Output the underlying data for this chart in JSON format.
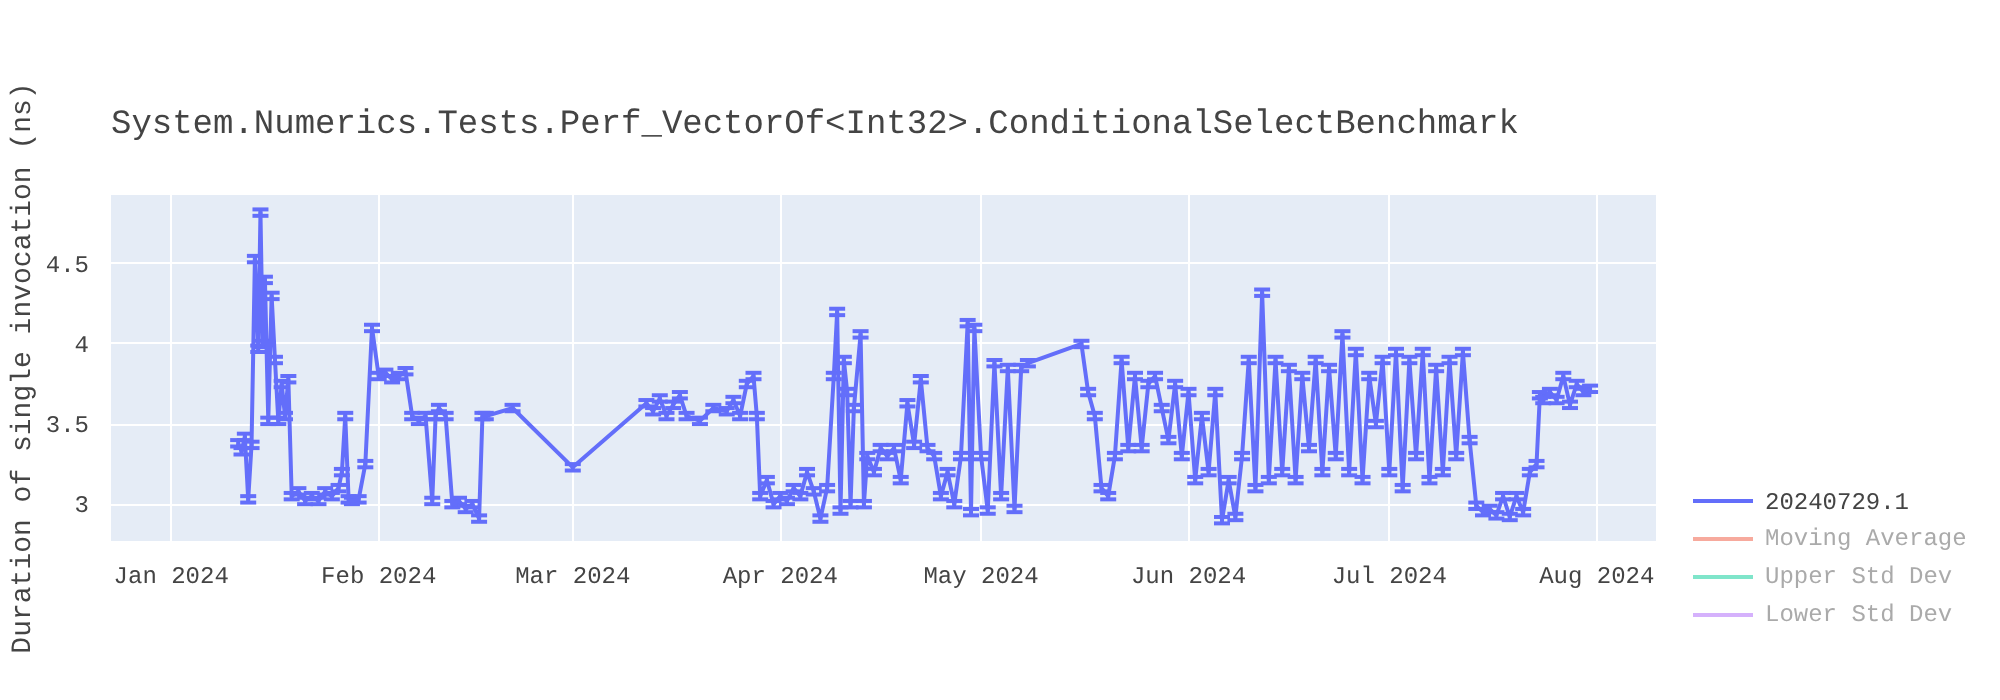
{
  "chart_data": {
    "type": "line",
    "title": "System.Numerics.Tests.Perf_VectorOf<Int32>.ConditionalSelectBenchmark",
    "ylabel": "Duration of single invocation (ns)",
    "xlim": [
      "2023-12-23",
      "2024-08-10"
    ],
    "ylim": [
      2.77,
      4.93
    ],
    "xticks": [
      {
        "value": "2024-01-01",
        "label": "Jan 2024"
      },
      {
        "value": "2024-02-01",
        "label": "Feb 2024"
      },
      {
        "value": "2024-03-01",
        "label": "Mar 2024"
      },
      {
        "value": "2024-04-01",
        "label": "Apr 2024"
      },
      {
        "value": "2024-05-01",
        "label": "May 2024"
      },
      {
        "value": "2024-06-01",
        "label": "Jun 2024"
      },
      {
        "value": "2024-07-01",
        "label": "Jul 2024"
      },
      {
        "value": "2024-08-01",
        "label": "Aug 2024"
      }
    ],
    "yticks": [
      3,
      3.5,
      4,
      4.5
    ],
    "grid": true,
    "legend": "right",
    "line_style": "solid",
    "series": [
      {
        "name": "20240729.1",
        "color": "#636efa",
        "x": [
          "2024-01-11",
          "2024-01-11T12:00",
          "2024-01-12",
          "2024-01-12T12:00",
          "2024-01-13",
          "2024-01-13T12:00",
          "2024-01-14",
          "2024-01-14T08:00",
          "2024-01-14T16:00",
          "2024-01-15",
          "2024-01-15T12:00",
          "2024-01-16",
          "2024-01-16T12:00",
          "2024-01-17",
          "2024-01-17T12:00",
          "2024-01-18",
          "2024-01-18T12:00",
          "2024-01-19",
          "2024-01-20",
          "2024-01-21",
          "2024-01-22",
          "2024-01-23",
          "2024-01-24",
          "2024-01-25",
          "2024-01-26",
          "2024-01-26T12:00",
          "2024-01-27",
          "2024-01-27T12:00",
          "2024-01-28",
          "2024-01-29",
          "2024-01-30",
          "2024-01-31",
          "2024-02-01",
          "2024-02-02",
          "2024-02-03",
          "2024-02-04",
          "2024-02-05",
          "2024-02-06",
          "2024-02-07",
          "2024-02-08",
          "2024-02-09",
          "2024-02-09T12:00",
          "2024-02-10",
          "2024-02-11",
          "2024-02-12",
          "2024-02-13",
          "2024-02-14",
          "2024-02-15",
          "2024-02-16",
          "2024-02-16T12:00",
          "2024-02-17",
          "2024-02-21",
          "2024-03-01",
          "2024-03-12",
          "2024-03-13",
          "2024-03-14",
          "2024-03-15",
          "2024-03-16",
          "2024-03-17",
          "2024-03-18",
          "2024-03-20",
          "2024-03-22",
          "2024-03-24",
          "2024-03-25",
          "2024-03-26",
          "2024-03-27",
          "2024-03-28",
          "2024-03-28T12:00",
          "2024-03-29",
          "2024-03-30",
          "2024-03-31",
          "2024-04-01",
          "2024-04-02",
          "2024-04-03",
          "2024-04-04",
          "2024-04-05",
          "2024-04-06",
          "2024-04-07",
          "2024-04-08",
          "2024-04-09",
          "2024-04-09T12:00",
          "2024-04-10",
          "2024-04-10T12:00",
          "2024-04-11",
          "2024-04-11T12:00",
          "2024-04-12",
          "2024-04-13",
          "2024-04-13T12:00",
          "2024-04-14",
          "2024-04-15",
          "2024-04-16",
          "2024-04-17",
          "2024-04-18",
          "2024-04-19",
          "2024-04-20",
          "2024-04-21",
          "2024-04-22",
          "2024-04-23",
          "2024-04-24",
          "2024-04-25",
          "2024-04-26",
          "2024-04-27",
          "2024-04-28",
          "2024-04-29",
          "2024-04-29T12:00",
          "2024-04-30",
          "2024-05-01",
          "2024-05-02",
          "2024-05-03",
          "2024-05-04",
          "2024-05-05",
          "2024-05-06",
          "2024-05-07",
          "2024-05-08",
          "2024-05-16",
          "2024-05-17",
          "2024-05-18",
          "2024-05-19",
          "2024-05-20",
          "2024-05-21",
          "2024-05-22",
          "2024-05-23",
          "2024-05-24",
          "2024-05-25",
          "2024-05-26",
          "2024-05-27",
          "2024-05-28",
          "2024-05-29",
          "2024-05-30",
          "2024-05-31",
          "2024-06-01",
          "2024-06-02",
          "2024-06-03",
          "2024-06-04",
          "2024-06-05",
          "2024-06-06",
          "2024-06-07",
          "2024-06-08",
          "2024-06-09",
          "2024-06-10",
          "2024-06-11",
          "2024-06-12",
          "2024-06-13",
          "2024-06-14",
          "2024-06-15",
          "2024-06-16",
          "2024-06-17",
          "2024-06-18",
          "2024-06-19",
          "2024-06-20",
          "2024-06-21",
          "2024-06-22",
          "2024-06-23",
          "2024-06-24",
          "2024-06-25",
          "2024-06-26",
          "2024-06-27",
          "2024-06-28",
          "2024-06-29",
          "2024-06-30",
          "2024-07-01",
          "2024-07-02",
          "2024-07-03",
          "2024-07-04",
          "2024-07-05",
          "2024-07-06",
          "2024-07-07",
          "2024-07-08",
          "2024-07-09",
          "2024-07-10",
          "2024-07-11",
          "2024-07-12",
          "2024-07-13",
          "2024-07-14",
          "2024-07-15",
          "2024-07-16",
          "2024-07-17",
          "2024-07-18",
          "2024-07-19",
          "2024-07-20",
          "2024-07-21",
          "2024-07-22",
          "2024-07-23",
          "2024-07-23T12:00",
          "2024-07-24",
          "2024-07-25",
          "2024-07-26",
          "2024-07-27",
          "2024-07-28",
          "2024-07-29",
          "2024-07-30",
          "2024-07-31"
        ],
        "values": [
          3.38,
          3.33,
          3.42,
          3.03,
          3.37,
          4.53,
          3.97,
          4.82,
          4.0,
          4.4,
          3.52,
          4.3,
          3.9,
          3.52,
          3.75,
          3.55,
          3.78,
          3.05,
          3.08,
          3.02,
          3.05,
          3.02,
          3.08,
          3.05,
          3.1,
          3.2,
          3.55,
          3.03,
          3.02,
          3.03,
          3.25,
          4.1,
          3.8,
          3.82,
          3.78,
          3.8,
          3.83,
          3.55,
          3.52,
          3.55,
          3.02,
          3.55,
          3.6,
          3.55,
          3.0,
          3.02,
          2.97,
          3.0,
          2.91,
          3.55,
          3.55,
          3.6,
          3.23,
          3.63,
          3.58,
          3.66,
          3.55,
          3.62,
          3.68,
          3.55,
          3.52,
          3.6,
          3.58,
          3.65,
          3.55,
          3.75,
          3.8,
          3.55,
          3.05,
          3.15,
          3.0,
          3.05,
          3.02,
          3.1,
          3.05,
          3.2,
          3.08,
          2.91,
          3.1,
          3.8,
          4.2,
          2.96,
          3.9,
          3.7,
          3.0,
          3.6,
          4.06,
          3.0,
          3.3,
          3.2,
          3.35,
          3.3,
          3.35,
          3.15,
          3.63,
          3.37,
          3.78,
          3.35,
          3.3,
          3.05,
          3.2,
          3.0,
          3.3,
          4.13,
          2.95,
          4.1,
          3.3,
          2.96,
          3.88,
          3.05,
          3.85,
          2.97,
          3.85,
          3.88,
          4.0,
          3.7,
          3.55,
          3.1,
          3.05,
          3.3,
          3.9,
          3.35,
          3.8,
          3.35,
          3.75,
          3.8,
          3.6,
          3.4,
          3.75,
          3.3,
          3.7,
          3.15,
          3.55,
          3.2,
          3.7,
          2.9,
          3.15,
          2.92,
          3.3,
          3.9,
          3.1,
          4.32,
          3.15,
          3.9,
          3.2,
          3.85,
          3.15,
          3.8,
          3.35,
          3.9,
          3.2,
          3.85,
          3.3,
          4.06,
          3.2,
          3.95,
          3.15,
          3.8,
          3.5,
          3.9,
          3.2,
          3.95,
          3.1,
          3.9,
          3.3,
          3.95,
          3.15,
          3.85,
          3.2,
          3.9,
          3.3,
          3.95,
          3.4,
          2.99,
          2.95,
          2.97,
          2.93,
          3.05,
          2.92,
          3.05,
          2.95,
          3.2,
          3.25,
          3.68,
          3.65,
          3.7,
          3.65,
          3.8,
          3.62,
          3.75,
          3.7,
          3.72
        ],
        "errors": [
          0.02,
          0.02,
          0.02,
          0.02,
          0.02,
          0.02,
          0.02,
          0.02,
          0.02,
          0.02,
          0.02,
          0.02,
          0.02,
          0.02,
          0.02,
          0.02,
          0.02,
          0.02,
          0.02,
          0.02,
          0.02,
          0.02,
          0.02,
          0.02,
          0.02,
          0.02,
          0.02,
          0.02,
          0.02,
          0.02,
          0.02,
          0.02,
          0.02,
          0.02,
          0.02,
          0.02,
          0.02,
          0.02,
          0.02,
          0.02,
          0.02,
          0.02,
          0.02,
          0.02,
          0.02,
          0.02,
          0.02,
          0.02,
          0.02,
          0.02,
          0.02,
          0.02,
          0.02,
          0.02,
          0.02,
          0.02,
          0.02,
          0.02,
          0.02,
          0.02,
          0.02,
          0.02,
          0.02,
          0.02,
          0.02,
          0.02,
          0.02,
          0.02,
          0.02,
          0.02,
          0.02,
          0.02,
          0.02,
          0.02,
          0.02,
          0.02,
          0.02,
          0.02,
          0.02,
          0.02,
          0.02,
          0.02,
          0.02,
          0.02,
          0.02,
          0.02,
          0.02,
          0.02,
          0.02,
          0.02,
          0.02,
          0.02,
          0.02,
          0.02,
          0.02,
          0.02,
          0.02,
          0.02,
          0.02,
          0.02,
          0.02,
          0.02,
          0.02,
          0.02,
          0.02,
          0.02,
          0.02,
          0.02,
          0.02,
          0.02,
          0.02,
          0.02,
          0.02,
          0.02,
          0.02,
          0.02,
          0.02,
          0.02,
          0.02,
          0.02,
          0.02,
          0.02,
          0.02,
          0.02,
          0.02,
          0.02,
          0.02,
          0.02,
          0.02,
          0.02,
          0.02,
          0.02,
          0.02,
          0.02,
          0.02,
          0.02,
          0.02,
          0.02,
          0.02,
          0.02,
          0.02,
          0.02,
          0.02,
          0.02,
          0.02,
          0.02,
          0.02,
          0.02,
          0.02,
          0.02,
          0.02,
          0.02,
          0.02,
          0.02,
          0.02,
          0.02,
          0.02,
          0.02,
          0.02,
          0.02,
          0.02,
          0.02,
          0.02,
          0.02,
          0.02,
          0.02,
          0.02,
          0.02,
          0.02,
          0.02,
          0.02,
          0.02,
          0.02,
          0.02,
          0.02,
          0.02,
          0.02,
          0.02,
          0.02,
          0.02,
          0.02,
          0.02,
          0.02,
          0.02,
          0.02,
          0.02,
          0.02,
          0.02,
          0.02,
          0.02,
          0.02,
          0.02
        ]
      },
      {
        "name": "Moving Average",
        "color": "#ef553b"
      },
      {
        "name": "Upper Std Dev",
        "color": "#00cc96"
      },
      {
        "name": "Lower Std Dev",
        "color": "#ab63fa"
      }
    ]
  }
}
